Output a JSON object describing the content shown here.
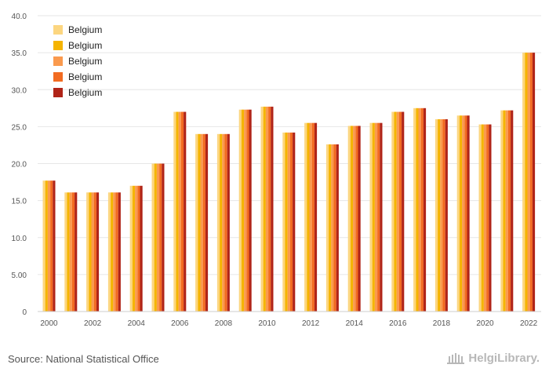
{
  "chart_data": {
    "type": "bar",
    "title": "",
    "xlabel": "",
    "ylabel": "",
    "ylim": [
      0,
      40
    ],
    "y_ticks": [
      "0",
      "5.00",
      "10.0",
      "15.0",
      "20.0",
      "25.0",
      "30.0",
      "35.0",
      "40.0"
    ],
    "x_tick_labels": [
      "2000",
      "2002",
      "2004",
      "2006",
      "2008",
      "2010",
      "2012",
      "2014",
      "2016",
      "2018",
      "2020",
      "2022"
    ],
    "categories": [
      "2000",
      "2001",
      "2002",
      "2003",
      "2004",
      "2005",
      "2006",
      "2007",
      "2008",
      "2009",
      "2010",
      "2011",
      "2012",
      "2013",
      "2014",
      "2015",
      "2016",
      "2017",
      "2018",
      "2019",
      "2020",
      "2021",
      "2022"
    ],
    "grid": true,
    "legend_position": "top-left",
    "series": [
      {
        "name": "Belgium",
        "color": "#fcd680",
        "values": [
          17.7,
          16.1,
          16.1,
          16.1,
          17.0,
          20.0,
          27.0,
          24.0,
          24.0,
          27.3,
          27.7,
          24.2,
          25.5,
          22.6,
          25.1,
          25.5,
          27.0,
          27.5,
          26.0,
          26.5,
          25.3,
          27.2,
          35.0
        ]
      },
      {
        "name": "Belgium",
        "color": "#f5b400",
        "values": [
          17.7,
          16.1,
          16.1,
          16.1,
          17.0,
          20.0,
          27.0,
          24.0,
          24.0,
          27.3,
          27.7,
          24.2,
          25.5,
          22.6,
          25.1,
          25.5,
          27.0,
          27.5,
          26.0,
          26.5,
          25.3,
          27.2,
          35.0
        ]
      },
      {
        "name": "Belgium",
        "color": "#fa9a4e",
        "values": [
          17.7,
          16.1,
          16.1,
          16.1,
          17.0,
          20.0,
          27.0,
          24.0,
          24.0,
          27.3,
          27.7,
          24.2,
          25.5,
          22.6,
          25.1,
          25.5,
          27.0,
          27.5,
          26.0,
          26.5,
          25.3,
          27.2,
          35.0
        ]
      },
      {
        "name": "Belgium",
        "color": "#f26b21",
        "values": [
          17.7,
          16.1,
          16.1,
          16.1,
          17.0,
          20.0,
          27.0,
          24.0,
          24.0,
          27.3,
          27.7,
          24.2,
          25.5,
          22.6,
          25.1,
          25.5,
          27.0,
          27.5,
          26.0,
          26.5,
          25.3,
          27.2,
          35.0
        ]
      },
      {
        "name": "Belgium",
        "color": "#b02418",
        "values": [
          17.7,
          16.1,
          16.1,
          16.1,
          17.0,
          20.0,
          27.0,
          24.0,
          24.0,
          27.3,
          27.7,
          24.2,
          25.5,
          22.6,
          25.1,
          25.5,
          27.0,
          27.5,
          26.0,
          26.5,
          25.3,
          27.2,
          35.0
        ]
      }
    ]
  },
  "footer": {
    "source": "Source: National Statistical Office",
    "logo_text": "HelgiLibrary."
  },
  "colors": {
    "grid": "#e6e6e6",
    "axis_text": "#555555",
    "logo": "#b8b8b8"
  }
}
